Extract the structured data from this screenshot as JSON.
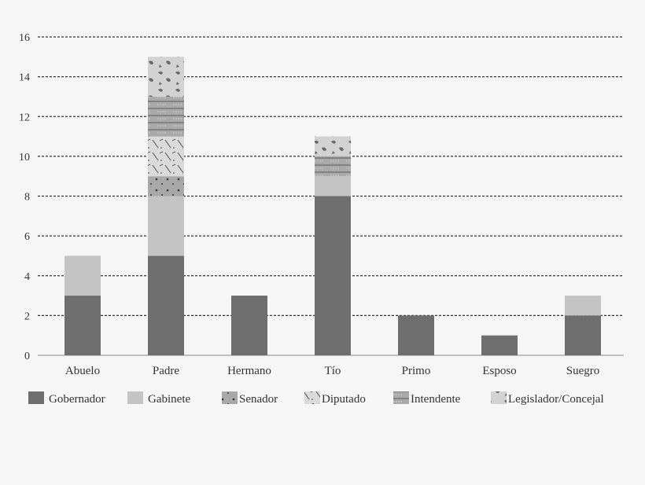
{
  "chart_data": {
    "type": "bar",
    "stacked": true,
    "categories": [
      "Abuelo",
      "Padre",
      "Hermano",
      "Tío",
      "Primo",
      "Esposo",
      "Suegro"
    ],
    "series": [
      {
        "name": "Gobernador",
        "values": [
          3,
          5,
          3,
          8,
          2,
          1,
          2
        ],
        "color": "#6e6e6e",
        "pattern": "solid"
      },
      {
        "name": "Gabinete",
        "values": [
          2,
          3,
          0,
          1,
          0,
          0,
          1
        ],
        "color": "#c4c4c4",
        "pattern": "solid"
      },
      {
        "name": "Senador",
        "values": [
          0,
          1,
          0,
          0,
          0,
          0,
          0
        ],
        "color": "#a8a8a8",
        "pattern": "dots"
      },
      {
        "name": "Diputado",
        "values": [
          0,
          2,
          0,
          0,
          0,
          0,
          0
        ],
        "color": "#d8d8d8",
        "pattern": "dashes"
      },
      {
        "name": "Intendente",
        "values": [
          0,
          2,
          0,
          1,
          0,
          0,
          0
        ],
        "color": "#a9a9a9",
        "pattern": "lines"
      },
      {
        "name": "Legislador/Concejal",
        "values": [
          0,
          2,
          0,
          1,
          0,
          0,
          0
        ],
        "color": "#cfcfcf",
        "pattern": "blobs"
      }
    ],
    "ylim": [
      0,
      16
    ],
    "yticks": [
      0,
      2,
      4,
      6,
      8,
      10,
      12,
      14,
      16
    ],
    "grid": true,
    "legend": "bottom"
  }
}
